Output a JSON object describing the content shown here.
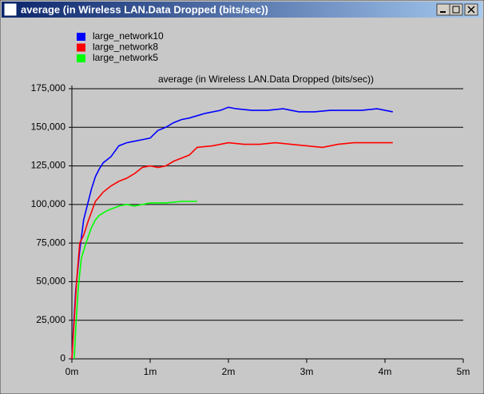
{
  "chart_data": {
    "type": "line",
    "window_title": "average (in Wireless LAN.Data Dropped (bits/sec))",
    "title": "average (in Wireless LAN.Data Dropped (bits/sec))",
    "xlim": [
      0,
      5
    ],
    "xticks": [
      {
        "value": 0,
        "label": "0m"
      },
      {
        "value": 1,
        "label": "1m"
      },
      {
        "value": 2,
        "label": "2m"
      },
      {
        "value": 3,
        "label": "3m"
      },
      {
        "value": 4,
        "label": "4m"
      },
      {
        "value": 5,
        "label": "5m"
      }
    ],
    "ylim": [
      0,
      175000
    ],
    "yticks": [
      0,
      {
        "value": 25000,
        "label": "25,000"
      },
      {
        "value": 50000,
        "label": "50,000"
      },
      {
        "value": 75000,
        "label": "75,000"
      },
      {
        "value": 100000,
        "label": "100,000"
      },
      {
        "value": 125000,
        "label": "125,000"
      },
      {
        "value": 150000,
        "label": "150,000"
      },
      {
        "value": 175000,
        "label": "175,000"
      }
    ],
    "grid": true,
    "legend": "top-left",
    "series": [
      {
        "name": "large_network10",
        "color": "#0000ff",
        "x": [
          0,
          0.02,
          0.05,
          0.1,
          0.15,
          0.2,
          0.25,
          0.3,
          0.35,
          0.4,
          0.5,
          0.6,
          0.7,
          0.8,
          0.9,
          1.0,
          1.1,
          1.2,
          1.3,
          1.4,
          1.5,
          1.7,
          1.9,
          2.0,
          2.1,
          2.3,
          2.5,
          2.7,
          2.9,
          3.1,
          3.3,
          3.5,
          3.7,
          3.9,
          4.1
        ],
        "values": [
          0,
          20000,
          45000,
          70000,
          90000,
          100000,
          110000,
          118000,
          123000,
          127000,
          131000,
          138000,
          140000,
          141000,
          142000,
          143000,
          148000,
          150000,
          153000,
          155000,
          156000,
          159000,
          161000,
          163000,
          162000,
          161000,
          161000,
          162000,
          160000,
          160000,
          161000,
          161000,
          161000,
          162000,
          160000
        ]
      },
      {
        "name": "large_network8",
        "color": "#ff0000",
        "x": [
          0,
          0.03,
          0.06,
          0.1,
          0.15,
          0.2,
          0.3,
          0.4,
          0.5,
          0.6,
          0.7,
          0.8,
          0.9,
          1.0,
          1.1,
          1.2,
          1.3,
          1.5,
          1.6,
          1.8,
          2.0,
          2.2,
          2.4,
          2.6,
          2.8,
          3.0,
          3.2,
          3.4,
          3.6,
          3.8,
          4.1
        ],
        "values": [
          0,
          25000,
          50000,
          75000,
          80000,
          88000,
          102000,
          108000,
          112000,
          115000,
          117000,
          120000,
          124000,
          125000,
          124000,
          125000,
          128000,
          132000,
          137000,
          138000,
          140000,
          139000,
          139000,
          140000,
          139000,
          138000,
          137000,
          139000,
          140000,
          140000,
          140000
        ]
      },
      {
        "name": "large_network5",
        "color": "#00ff00",
        "x": [
          0.03,
          0.05,
          0.08,
          0.12,
          0.18,
          0.25,
          0.3,
          0.35,
          0.45,
          0.6,
          0.7,
          0.8,
          0.9,
          1.0,
          1.2,
          1.4,
          1.6
        ],
        "values": [
          0,
          20000,
          45000,
          65000,
          75000,
          85000,
          90000,
          93000,
          96000,
          99000,
          100000,
          99000,
          100000,
          101000,
          101000,
          102000,
          102000
        ]
      }
    ]
  }
}
